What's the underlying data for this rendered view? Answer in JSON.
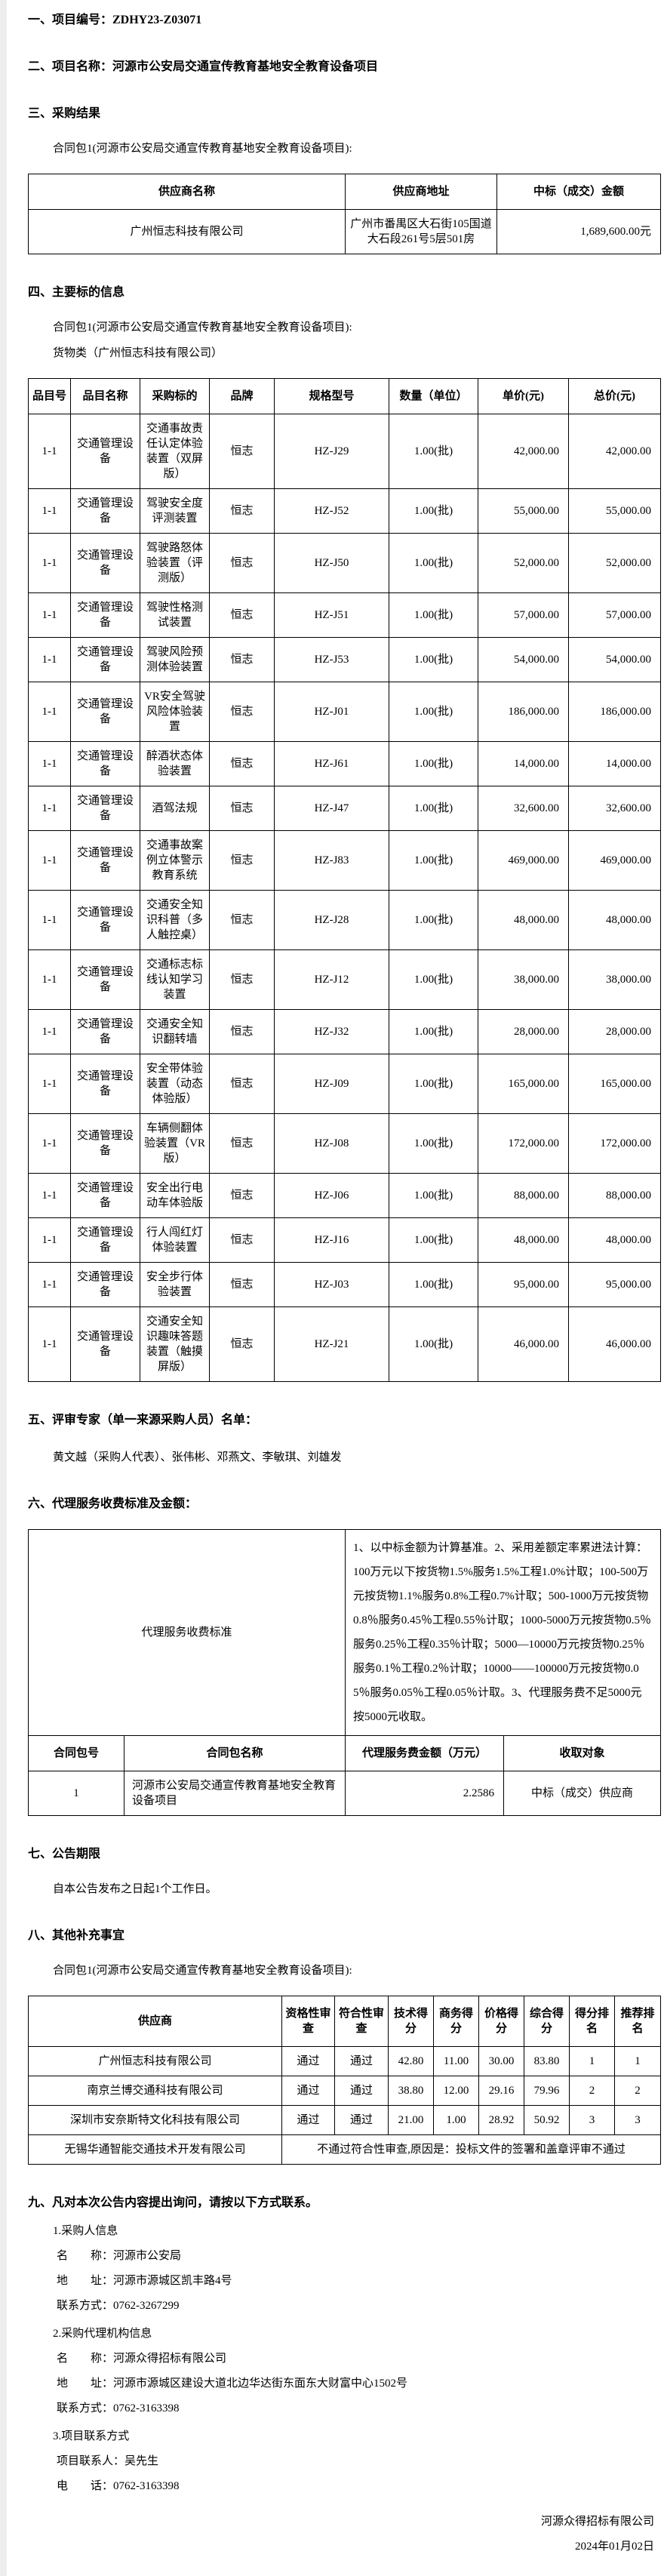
{
  "doc": {
    "s1_title": "一、项目编号：ZDHY23-Z03071",
    "s2_title": "二、项目名称：河源市公安局交通宣传教育基地安全教育设备项目",
    "s3_title": "三、采购结果",
    "s3_package_line": "合同包1(河源市公安局交通宣传教育基地安全教育设备项目):",
    "s4_title": "四、主要标的信息",
    "s4_package_line": "合同包1(河源市公安局交通宣传教育基地安全教育设备项目):",
    "s4_category_line": "货物类（广州恒志科技有限公司）",
    "s5_title": "五、评审专家（单一来源采购人员）名单：",
    "s5_experts": "黄文越（采购人代表）、张伟彬、邓燕文、李敏琪、刘雄发",
    "s6_title": "六、代理服务收费标准及金额：",
    "s7_title": "七、公告期限",
    "s7_text": "自本公告发布之日起1个工作日。",
    "s8_title": "八、其他补充事宜",
    "s8_package_line": "合同包1(河源市公安局交通宣传教育基地安全教育设备项目):",
    "s9_title": "九、凡对本次公告内容提出询问，请按以下方式联系。"
  },
  "result_table": {
    "headers": [
      "供应商名称",
      "供应商地址",
      "中标（成交）金额"
    ],
    "rows": [
      {
        "name": "广州恒志科技有限公司",
        "address": "广州市番禺区大石街105国道大石段261号5层501房",
        "amount": "1,689,600.00元"
      }
    ]
  },
  "items_table": {
    "headers": [
      "品目号",
      "品目名称",
      "采购标的",
      "品牌",
      "规格型号",
      "数量（单位）",
      "单价(元)",
      "总价(元)"
    ],
    "rows": [
      {
        "no": "1-1",
        "name": "交通管理设备",
        "target": "交通事故责任认定体验装置（双屏版）",
        "brand": "恒志",
        "model": "HZ-J29",
        "qty": "1.00(批)",
        "unit_price": "42,000.00",
        "total_price": "42,000.00"
      },
      {
        "no": "1-1",
        "name": "交通管理设备",
        "target": "驾驶安全度评测装置",
        "brand": "恒志",
        "model": "HZ-J52",
        "qty": "1.00(批)",
        "unit_price": "55,000.00",
        "total_price": "55,000.00"
      },
      {
        "no": "1-1",
        "name": "交通管理设备",
        "target": "驾驶路怒体验装置（评测版）",
        "brand": "恒志",
        "model": "HZ-J50",
        "qty": "1.00(批)",
        "unit_price": "52,000.00",
        "total_price": "52,000.00"
      },
      {
        "no": "1-1",
        "name": "交通管理设备",
        "target": "驾驶性格测试装置",
        "brand": "恒志",
        "model": "HZ-J51",
        "qty": "1.00(批)",
        "unit_price": "57,000.00",
        "total_price": "57,000.00"
      },
      {
        "no": "1-1",
        "name": "交通管理设备",
        "target": "驾驶风险预测体验装置",
        "brand": "恒志",
        "model": "HZ-J53",
        "qty": "1.00(批)",
        "unit_price": "54,000.00",
        "total_price": "54,000.00"
      },
      {
        "no": "1-1",
        "name": "交通管理设备",
        "target": "VR安全驾驶风险体验装置",
        "brand": "恒志",
        "model": "HZ-J01",
        "qty": "1.00(批)",
        "unit_price": "186,000.00",
        "total_price": "186,000.00"
      },
      {
        "no": "1-1",
        "name": "交通管理设备",
        "target": "醉酒状态体验装置",
        "brand": "恒志",
        "model": "HZ-J61",
        "qty": "1.00(批)",
        "unit_price": "14,000.00",
        "total_price": "14,000.00"
      },
      {
        "no": "1-1",
        "name": "交通管理设备",
        "target": "酒驾法规",
        "brand": "恒志",
        "model": "HZ-J47",
        "qty": "1.00(批)",
        "unit_price": "32,600.00",
        "total_price": "32,600.00"
      },
      {
        "no": "1-1",
        "name": "交通管理设备",
        "target": "交通事故案例立体警示教育系统",
        "brand": "恒志",
        "model": "HZ-J83",
        "qty": "1.00(批)",
        "unit_price": "469,000.00",
        "total_price": "469,000.00"
      },
      {
        "no": "1-1",
        "name": "交通管理设备",
        "target": "交通安全知识科普（多人触控桌）",
        "brand": "恒志",
        "model": "HZ-J28",
        "qty": "1.00(批)",
        "unit_price": "48,000.00",
        "total_price": "48,000.00"
      },
      {
        "no": "1-1",
        "name": "交通管理设备",
        "target": "交通标志标线认知学习装置",
        "brand": "恒志",
        "model": "HZ-J12",
        "qty": "1.00(批)",
        "unit_price": "38,000.00",
        "total_price": "38,000.00"
      },
      {
        "no": "1-1",
        "name": "交通管理设备",
        "target": "交通安全知识翻转墙",
        "brand": "恒志",
        "model": "HZ-J32",
        "qty": "1.00(批)",
        "unit_price": "28,000.00",
        "total_price": "28,000.00"
      },
      {
        "no": "1-1",
        "name": "交通管理设备",
        "target": "安全带体验装置（动态体验版）",
        "brand": "恒志",
        "model": "HZ-J09",
        "qty": "1.00(批)",
        "unit_price": "165,000.00",
        "total_price": "165,000.00"
      },
      {
        "no": "1-1",
        "name": "交通管理设备",
        "target": "车辆侧翻体验装置（VR版）",
        "brand": "恒志",
        "model": "HZ-J08",
        "qty": "1.00(批)",
        "unit_price": "172,000.00",
        "total_price": "172,000.00"
      },
      {
        "no": "1-1",
        "name": "交通管理设备",
        "target": "安全出行电动车体验版",
        "brand": "恒志",
        "model": "HZ-J06",
        "qty": "1.00(批)",
        "unit_price": "88,000.00",
        "total_price": "88,000.00"
      },
      {
        "no": "1-1",
        "name": "交通管理设备",
        "target": "行人闯红灯体验装置",
        "brand": "恒志",
        "model": "HZ-J16",
        "qty": "1.00(批)",
        "unit_price": "48,000.00",
        "total_price": "48,000.00"
      },
      {
        "no": "1-1",
        "name": "交通管理设备",
        "target": "安全步行体验装置",
        "brand": "恒志",
        "model": "HZ-J03",
        "qty": "1.00(批)",
        "unit_price": "95,000.00",
        "total_price": "95,000.00"
      },
      {
        "no": "1-1",
        "name": "交通管理设备",
        "target": "交通安全知识趣味答题装置（触摸屏版）",
        "brand": "恒志",
        "model": "HZ-J21",
        "qty": "1.00(批)",
        "unit_price": "46,000.00",
        "total_price": "46,000.00"
      }
    ]
  },
  "fee_standard": {
    "label": "代理服务收费标准",
    "text": "1、以中标金额为计算基准。2、采用差额定率累进法计算：100万元以下按货物1.5%服务1.5%工程1.0%计取；100-500万元按货物1.1%服务0.8%工程0.7%计取；500-1000万元按货物0.8％服务0.45％工程0.55％计取；1000-5000万元按货物0.5％服务0.25％工程0.35％计取；5000—10000万元按货物0.25％服务0.1％工程0.2％计取；10000——100000万元按货物0.05％服务0.05％工程0.05％计取。3、代理服务费不足5000元按5000元收取。"
  },
  "fee_table": {
    "headers": [
      "合同包号",
      "合同包名称",
      "代理服务费金额（万元）",
      "收取对象"
    ],
    "rows": [
      {
        "no": "1",
        "name": "河源市公安局交通宣传教育基地安全教育设备项目",
        "amount": "2.2586",
        "payer": "中标（成交）供应商"
      }
    ]
  },
  "review_table": {
    "headers": [
      "供应商",
      "资格性审查",
      "符合性审查",
      "技术得分",
      "商务得分",
      "价格得分",
      "综合得分",
      "得分排名",
      "推荐排名"
    ],
    "rows": [
      {
        "supplier": "广州恒志科技有限公司",
        "qual": "通过",
        "conf": "通过",
        "tech": "42.80",
        "biz": "11.00",
        "price": "30.00",
        "total": "83.80",
        "score_rank": "1",
        "rec_rank": "1"
      },
      {
        "supplier": "南京兰博交通科技有限公司",
        "qual": "通过",
        "conf": "通过",
        "tech": "38.80",
        "biz": "12.00",
        "price": "29.16",
        "total": "79.96",
        "score_rank": "2",
        "rec_rank": "2"
      },
      {
        "supplier": "深圳市安奈斯特文化科技有限公司",
        "qual": "通过",
        "conf": "通过",
        "tech": "21.00",
        "biz": "1.00",
        "price": "28.92",
        "total": "50.92",
        "score_rank": "3",
        "rec_rank": "3"
      },
      {
        "supplier": "无锡华通智能交通技术开发有限公司",
        "span_text": "不通过符合性审查,原因是：投标文件的签署和盖章评审不通过"
      }
    ]
  },
  "contact": {
    "g1_heading": "1.采购人信息",
    "g1_name": "名　　称：河源市公安局",
    "g1_addr": "地　　址：河源市源城区凯丰路4号",
    "g1_tel": "联系方式：0762-3267299",
    "g2_heading": "2.采购代理机构信息",
    "g2_name": "名　　称：河源众得招标有限公司",
    "g2_addr": "地　　址：河源市源城区建设大道北边华达街东面东大财富中心1502号",
    "g2_tel": "联系方式：0762-3163398",
    "g3_heading": "3.项目联系方式",
    "g3_contact": "项目联系人：吴先生",
    "g3_tel": "电　　话：0762-3163398"
  },
  "footer": {
    "company": "河源众得招标有限公司",
    "date": "2024年01月02日"
  }
}
